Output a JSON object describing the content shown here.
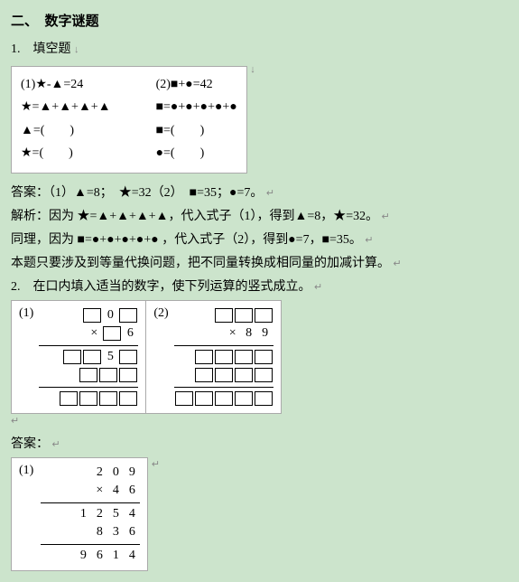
{
  "title": "二、　数字谜题",
  "q1": {
    "heading": "1.　填空题",
    "left": {
      "a": "(1)★-▲=24",
      "b": "★=▲+▲+▲+▲",
      "c": "▲=(　　)",
      "d": "★=(　　)"
    },
    "right": {
      "a": "(2)■+●=42",
      "b": "■=●+●+●+●+●",
      "c": "■=(　　)",
      "d": "●=(　　)"
    },
    "answer": "答案：（1）▲=8；　★=32（2）　■=35；●=7。",
    "expl1": "解析：因为 ★=▲+▲+▲+▲，代入式子（1），得到▲=8，★=32。",
    "expl2a": "同理，因为 ■=●+●+●+●+● ，代入式子（2），得到●=7，■=35。",
    "expl2b": "本题只要涉及到等量代换问题，把不同量转换成相同量的加减计算。"
  },
  "q2": {
    "heading": "2.　在口内填入适当的数字，使下列运算的竖式成立。",
    "p1": {
      "label": "(1)",
      "row1": [
        "□",
        "0",
        "□"
      ],
      "row2": [
        "×",
        "□",
        "6"
      ],
      "row3": [
        "□",
        "□",
        "5",
        "□"
      ],
      "row4": [
        "□",
        "□",
        "□"
      ],
      "row5": [
        "□",
        "□",
        "□",
        "□"
      ]
    },
    "p2": {
      "label": "(2)",
      "row1": [
        "□",
        "□",
        "□"
      ],
      "row2": [
        "×",
        "8",
        "9"
      ],
      "row3": [
        "□",
        "□",
        "□",
        "□"
      ],
      "row4": [
        "□",
        "□",
        "□",
        "□"
      ],
      "row5": [
        "□",
        "□",
        "□",
        "□",
        "□"
      ]
    },
    "anslabel": "答案：",
    "ans": {
      "label": "(1)",
      "row1": "2 0 9",
      "row2": "×   4 6",
      "row3": "1 2 5 4",
      "row4": "8 3 6",
      "row5": "9 6 1 4"
    }
  },
  "colors": {
    "bg": "#cce4cc",
    "box_bg": "#ffffff",
    "border": "#aaaaaa",
    "text": "#000000"
  }
}
